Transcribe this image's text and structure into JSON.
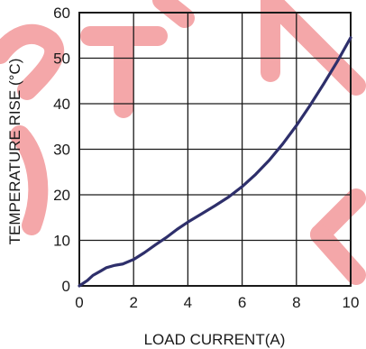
{
  "chart_data": {
    "type": "line",
    "xlabel": "LOAD CURRENT(A)",
    "ylabel": "TEMPERATURE RISE (°C)",
    "xlim": [
      0,
      10
    ],
    "ylim": [
      0,
      60
    ],
    "x_ticks": [
      "0",
      "2",
      "4",
      "6",
      "8",
      "10"
    ],
    "y_ticks": [
      "0",
      "10",
      "20",
      "30",
      "40",
      "50",
      "60"
    ],
    "grid": true,
    "series": [
      {
        "color": "#2e2f6b",
        "x": [
          0,
          0.3,
          0.5,
          0.8,
          1.0,
          1.3,
          1.6,
          2.0,
          2.4,
          2.8,
          3.2,
          3.6,
          4.0,
          4.5,
          5.0,
          5.5,
          6.0,
          6.5,
          7.0,
          7.5,
          8.0,
          8.5,
          9.0,
          9.5,
          10.0
        ],
        "y": [
          0,
          1.2,
          2.3,
          3.3,
          4.0,
          4.5,
          4.8,
          5.8,
          7.3,
          9.0,
          10.6,
          12.4,
          14.0,
          15.8,
          17.6,
          19.5,
          21.8,
          24.5,
          27.6,
          31.2,
          35.2,
          39.6,
          44.3,
          49.2,
          54.5
        ]
      }
    ],
    "watermark_color": "#f4a7a9"
  }
}
